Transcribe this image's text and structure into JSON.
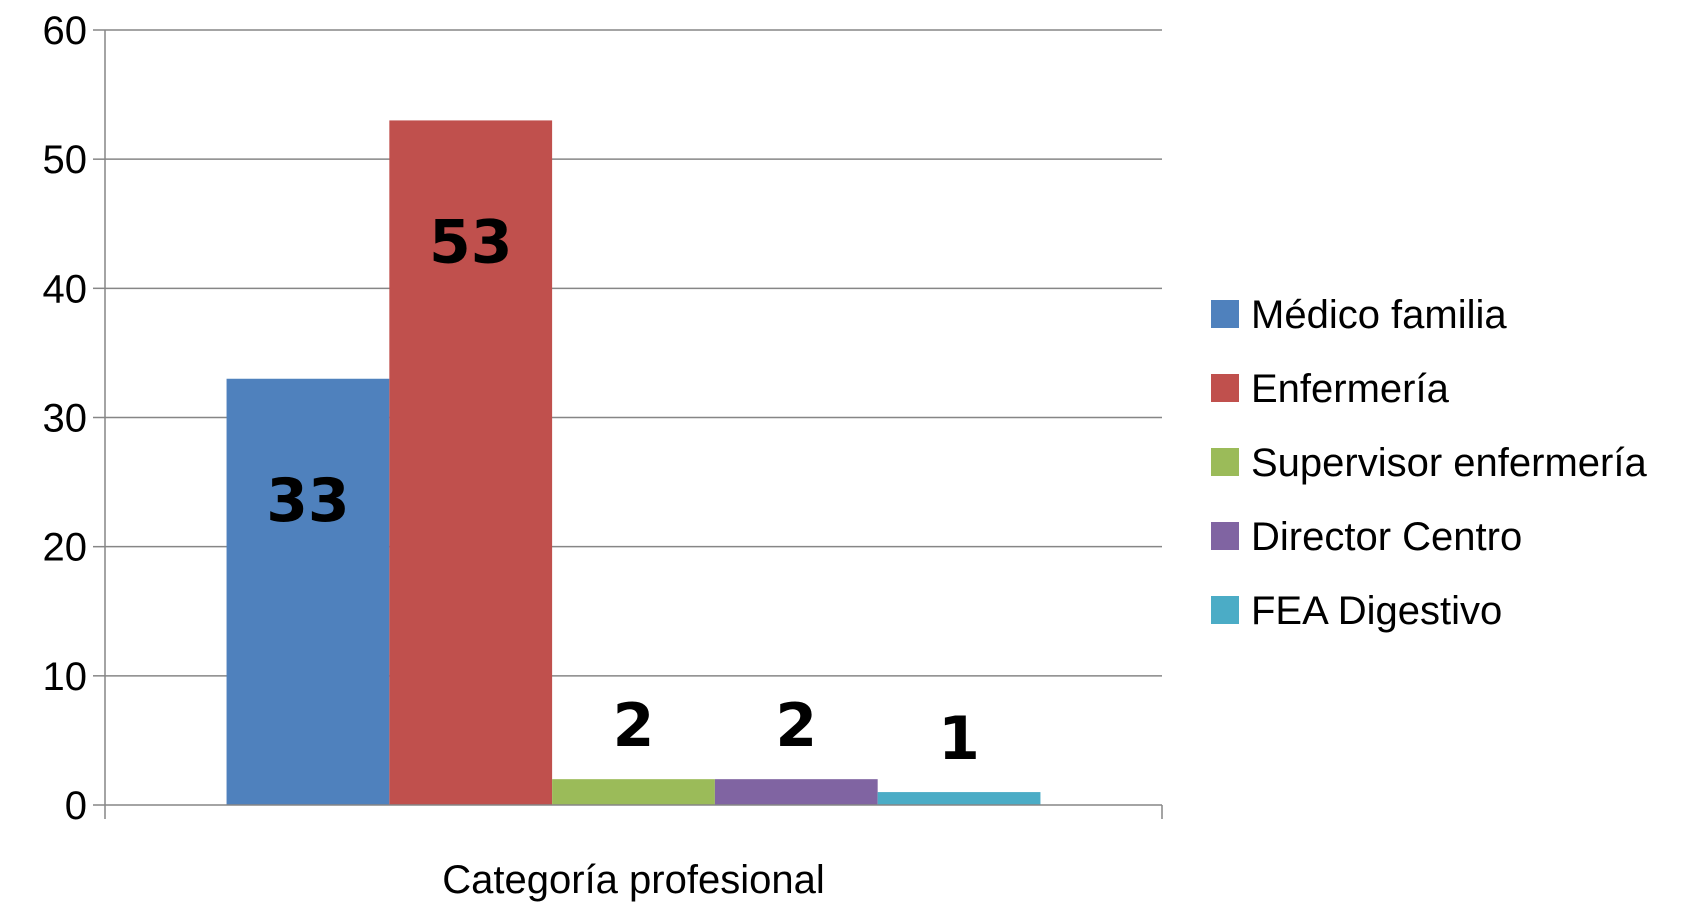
{
  "chart_data": {
    "type": "bar",
    "categories": [
      "Categoría profesional"
    ],
    "series": [
      {
        "name": "Médico familia",
        "values": [
          33
        ],
        "color": "#4F81BD"
      },
      {
        "name": "Enfermería",
        "values": [
          53
        ],
        "color": "#C0504D"
      },
      {
        "name": "Supervisor enfermería",
        "values": [
          2
        ],
        "color": "#9BBB59"
      },
      {
        "name": "Director Centro",
        "values": [
          2
        ],
        "color": "#8064A2"
      },
      {
        "name": "FEA Digestivo",
        "values": [
          1
        ],
        "color": "#4BACC6"
      }
    ],
    "ylim": [
      0,
      60
    ],
    "yticks": [
      0,
      10,
      20,
      30,
      40,
      50,
      60
    ],
    "data_labels": true,
    "grid": true,
    "legend": "right"
  }
}
